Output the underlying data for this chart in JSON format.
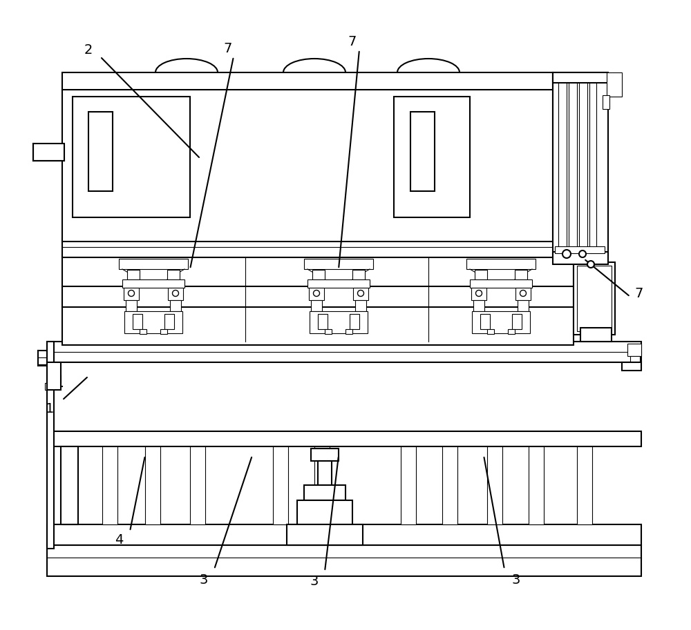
{
  "bg_color": "#ffffff",
  "lc": "#000000",
  "lw": 1.5,
  "tlw": 0.8
}
